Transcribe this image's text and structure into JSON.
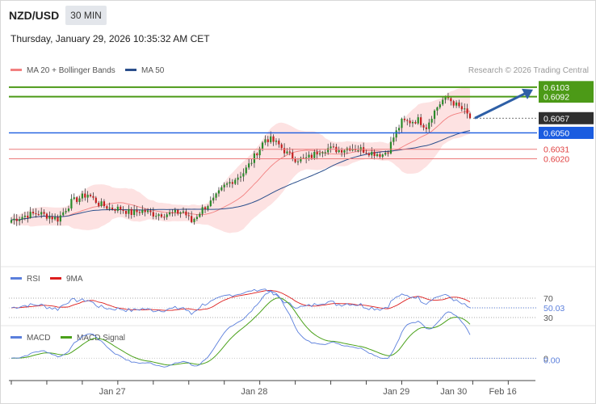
{
  "header": {
    "symbol": "NZD/USD",
    "timeframe": "30 MIN",
    "datetime": "Thursday, January 29, 2026 10:35:32 AM CET",
    "credit": "Research © 2026 Trading Central"
  },
  "colors": {
    "bollinger": "#f28080",
    "bollinger_fill": "#fde2e2",
    "ma50": "#2b4f8c",
    "resistance": "#4c9a17",
    "support_blue": "#1a5ce0",
    "support_red": "#e04040",
    "current": "#2f2f2f",
    "arrow": "#2e5fa6",
    "rsi": "#5b7fdc",
    "rsi_ma": "#dd1d1d",
    "macd": "#5b7fdc",
    "macd_signal": "#4aa11a"
  },
  "chart_data": [
    {
      "type": "candlestick",
      "name": "price",
      "legend": [
        {
          "label": "MA 20 + Bollinger Bands",
          "color": "#f28080"
        },
        {
          "label": "MA 50",
          "color": "#2b4f8c"
        }
      ],
      "ylim": [
        0.5895,
        0.6115
      ],
      "price_levels": [
        {
          "value": 0.6103,
          "label": "0.6103",
          "style": "resistance"
        },
        {
          "value": 0.6092,
          "label": "0.6092",
          "style": "resistance"
        },
        {
          "value": 0.6067,
          "label": "0.6067",
          "style": "current"
        },
        {
          "value": 0.605,
          "label": "0.6050",
          "style": "support"
        },
        {
          "value": 0.6031,
          "label": "0.6031",
          "style": "minor"
        },
        {
          "value": 0.602,
          "label": "0.6020",
          "style": "minor"
        }
      ],
      "projection": {
        "from": 0.6067,
        "to": 0.6103
      },
      "close_anchors": [
        [
          0,
          0.5949
        ],
        [
          6,
          0.5955
        ],
        [
          10,
          0.5957
        ],
        [
          14,
          0.5953
        ],
        [
          17,
          0.595
        ],
        [
          22,
          0.597
        ],
        [
          28,
          0.5979
        ],
        [
          32,
          0.5968
        ],
        [
          36,
          0.5963
        ],
        [
          40,
          0.5962
        ],
        [
          44,
          0.5957
        ],
        [
          48,
          0.596
        ],
        [
          52,
          0.5956
        ],
        [
          56,
          0.5956
        ],
        [
          60,
          0.5957
        ],
        [
          63,
          0.5959
        ],
        [
          66,
          0.5947
        ],
        [
          70,
          0.5962
        ],
        [
          74,
          0.5972
        ],
        [
          78,
          0.5988
        ],
        [
          82,
          0.5997
        ],
        [
          85,
          0.6004
        ],
        [
          88,
          0.6017
        ],
        [
          90,
          0.6028
        ],
        [
          93,
          0.6043
        ],
        [
          95,
          0.6042
        ],
        [
          98,
          0.6036
        ],
        [
          101,
          0.6026
        ],
        [
          104,
          0.602
        ],
        [
          107,
          0.6019
        ],
        [
          110,
          0.6023
        ],
        [
          113,
          0.603
        ],
        [
          116,
          0.6032
        ],
        [
          120,
          0.603
        ],
        [
          124,
          0.6033
        ],
        [
          128,
          0.6031
        ],
        [
          132,
          0.6027
        ],
        [
          136,
          0.6025
        ],
        [
          138,
          0.603
        ],
        [
          140,
          0.6045
        ],
        [
          143,
          0.6063
        ],
        [
          146,
          0.6063
        ],
        [
          149,
          0.6065
        ],
        [
          152,
          0.6057
        ],
        [
          154,
          0.607
        ],
        [
          156,
          0.608
        ],
        [
          158,
          0.6088
        ],
        [
          160,
          0.609
        ],
        [
          163,
          0.6082
        ],
        [
          166,
          0.6075
        ],
        [
          168,
          0.6067
        ]
      ]
    },
    {
      "type": "line",
      "name": "rsi",
      "legend": [
        {
          "label": "RSI",
          "color": "#5b7fdc"
        },
        {
          "label": "9MA",
          "color": "#dd1d1d"
        }
      ],
      "ylim": [
        15,
        85
      ],
      "levels": [
        {
          "value": 70,
          "label": "70"
        },
        {
          "value": 30,
          "label": "30"
        }
      ],
      "last_value": {
        "value": 50.03,
        "label": "50.03"
      }
    },
    {
      "type": "line",
      "name": "macd",
      "legend": [
        {
          "label": "MACD",
          "color": "#5b7fdc"
        },
        {
          "label": "MACD Signal",
          "color": "#4aa11a"
        }
      ],
      "ylim": [
        -0.0006,
        0.0003
      ],
      "levels": [
        {
          "value": 0,
          "label": "0"
        }
      ],
      "last_value": {
        "value": 0.0,
        "label": "0.00"
      }
    }
  ],
  "x_axis": {
    "ticks": [
      {
        "label": "Jan 27",
        "bar": 37
      },
      {
        "label": "Jan 28",
        "bar": 89
      },
      {
        "label": "Jan 29",
        "bar": 141
      },
      {
        "label": "Jan 30",
        "bar": 162
      },
      {
        "label": "Feb 16",
        "bar": 180
      }
    ]
  }
}
